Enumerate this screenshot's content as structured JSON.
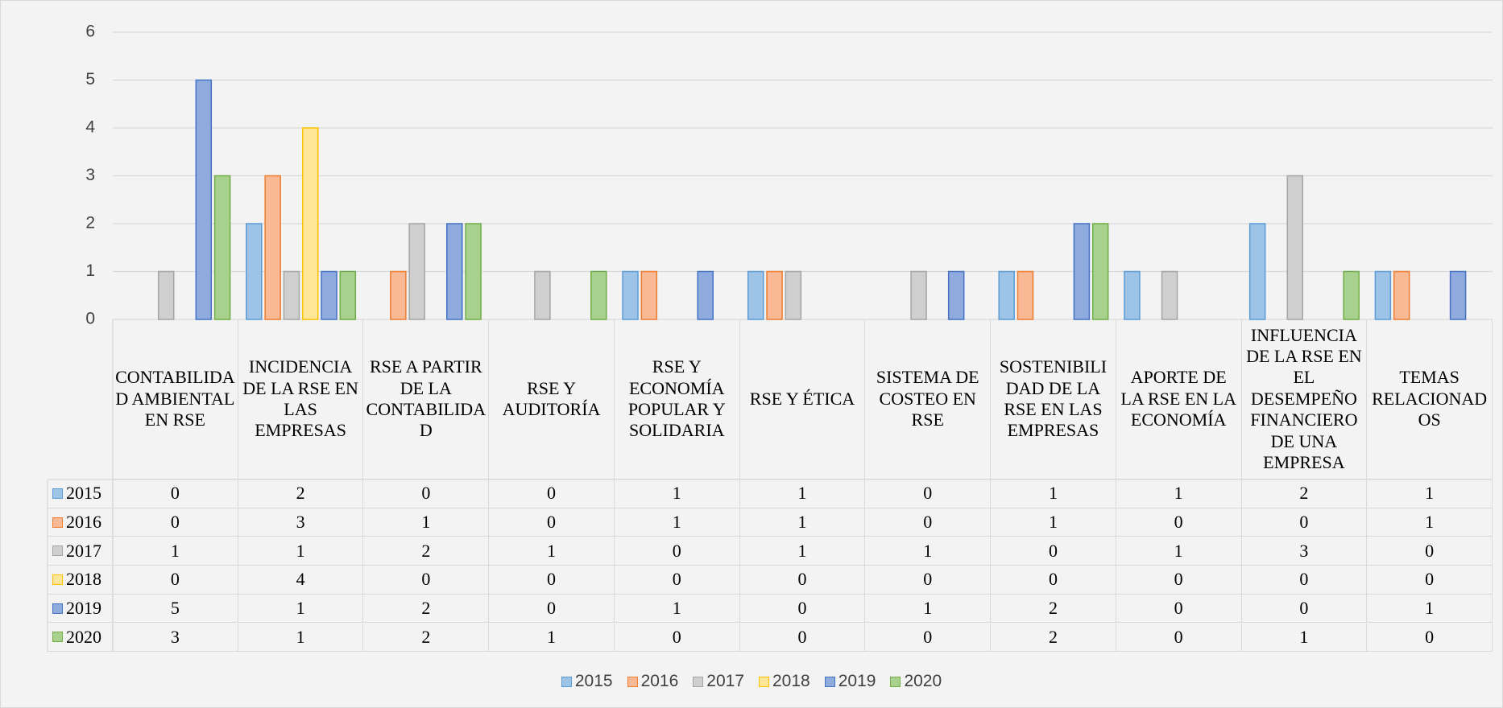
{
  "chart_data": {
    "type": "bar",
    "categories": [
      "CONTABILIDAD AMBIENTAL EN RSE",
      "INCIDENCIA DE LA RSE EN LAS EMPRESAS",
      "RSE A PARTIR DE LA CONTABILIDAD",
      "RSE Y AUDITORÍA",
      "RSE Y ECONOMÍA POPULAR Y SOLIDARIA",
      "RSE Y ÉTICA",
      "SISTEMA DE COSTEO EN RSE",
      "SOSTENIBILIDAD DE LA RSE EN LAS EMPRESAS",
      "APORTE DE LA RSE EN LA ECONOMÍA",
      "INFLUENCIA DE LA RSE EN EL DESEMPEÑO FINANCIERO DE UNA EMPRESA",
      "TEMAS RELACIONADOS"
    ],
    "series": [
      {
        "name": "2015",
        "color": "#9dc3e6",
        "edge_color": "#5b9bd5",
        "values": [
          0,
          2,
          0,
          0,
          1,
          1,
          0,
          1,
          1,
          2,
          1
        ]
      },
      {
        "name": "2016",
        "color": "#f8b994",
        "edge_color": "#ed7d31",
        "values": [
          0,
          3,
          1,
          0,
          1,
          1,
          0,
          1,
          0,
          0,
          1
        ]
      },
      {
        "name": "2017",
        "color": "#cfcfcf",
        "edge_color": "#a5a5a5",
        "values": [
          1,
          1,
          2,
          1,
          0,
          1,
          1,
          0,
          1,
          3,
          0
        ]
      },
      {
        "name": "2018",
        "color": "#ffe699",
        "edge_color": "#ffc000",
        "values": [
          0,
          4,
          0,
          0,
          0,
          0,
          0,
          0,
          0,
          0,
          0
        ]
      },
      {
        "name": "2019",
        "color": "#8faadc",
        "edge_color": "#4472c4",
        "values": [
          5,
          1,
          2,
          0,
          1,
          0,
          1,
          2,
          0,
          0,
          1
        ]
      },
      {
        "name": "2020",
        "color": "#a9d18e",
        "edge_color": "#70ad47",
        "values": [
          3,
          1,
          2,
          1,
          0,
          0,
          0,
          2,
          0,
          1,
          0
        ]
      }
    ],
    "ylim": [
      0,
      6
    ],
    "yticks": [
      0,
      1,
      2,
      3,
      4,
      5,
      6
    ],
    "grid": true,
    "legend": "bottom"
  }
}
